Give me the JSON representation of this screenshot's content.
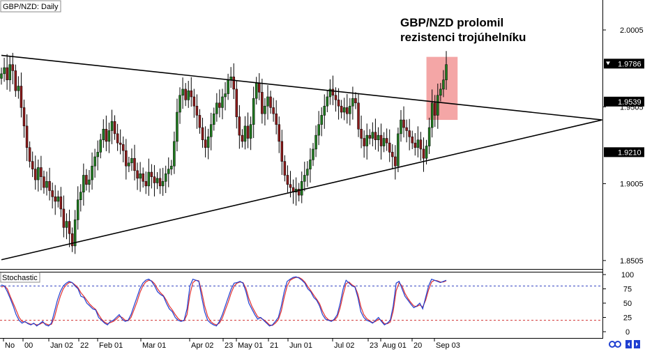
{
  "window": {
    "symbol_label": "GBP/NZD: Daily",
    "indicator_label": "Stochastic"
  },
  "annotation": {
    "line1": "GBP/NZD prolomil",
    "line2": "rezistenci trojúhelníku"
  },
  "colors": {
    "bull": "#1f7a1f",
    "bear": "#8b1a1a",
    "wick": "#000000",
    "trendline": "#000000",
    "highlight": "#f08080",
    "stoch_k": "#1f3fd1",
    "stoch_d": "#e03030",
    "level_upper": "#3040c0",
    "level_lower": "#d03030",
    "grid": "#cccccc",
    "price_tag_bg": "#000000",
    "price_tag_fg": "#ffffff"
  },
  "chart_data": [
    {
      "type": "candlestick",
      "title": "GBP/NZD: Daily",
      "ylim": [
        1.845,
        2.02
      ],
      "y_ticks": [
        "2.0005",
        "1.9505",
        "1.9005",
        "1.8505"
      ],
      "x_ticks": [
        "No",
        "00",
        "Jan 02",
        "22",
        "Feb 01",
        "Mar 01",
        "Apr 02",
        "23",
        "May 01",
        "21",
        "Jun 01",
        "Jul 02",
        "23",
        "Aug 01",
        "20",
        "Sep 03"
      ],
      "price_tags": [
        "1.9786",
        "1.9539",
        "1.9210"
      ],
      "current_price": 1.9786,
      "triangle": {
        "resistance": [
          [
            0,
            1.984
          ],
          [
            212,
            1.942
          ]
        ],
        "support": [
          [
            0,
            1.851
          ],
          [
            212,
            1.942
          ]
        ]
      },
      "breakout_zone": {
        "x_range": [
          150,
          161
        ],
        "y_range": [
          1.942,
          1.983
        ]
      },
      "closes": [
        1.972,
        1.976,
        1.968,
        1.978,
        1.974,
        1.961,
        1.964,
        1.95,
        1.938,
        1.924,
        1.915,
        1.91,
        1.903,
        1.911,
        1.905,
        1.898,
        1.902,
        1.896,
        1.892,
        1.889,
        1.892,
        1.884,
        1.872,
        1.876,
        1.868,
        1.86,
        1.877,
        1.89,
        1.895,
        1.906,
        1.9,
        1.903,
        1.912,
        1.918,
        1.921,
        1.929,
        1.936,
        1.928,
        1.935,
        1.941,
        1.933,
        1.927,
        1.926,
        1.922,
        1.912,
        1.914,
        1.917,
        1.909,
        1.904,
        1.907,
        1.902,
        1.899,
        1.908,
        1.905,
        1.901,
        1.904,
        1.899,
        1.902,
        1.907,
        1.91,
        1.912,
        1.928,
        1.947,
        1.958,
        1.962,
        1.955,
        1.961,
        1.957,
        1.951,
        1.945,
        1.937,
        1.929,
        1.924,
        1.931,
        1.939,
        1.946,
        1.953,
        1.95,
        1.957,
        1.959,
        1.968,
        1.97,
        1.962,
        1.944,
        1.932,
        1.928,
        1.938,
        1.93,
        1.939,
        1.956,
        1.966,
        1.96,
        1.946,
        1.951,
        1.957,
        1.95,
        1.946,
        1.939,
        1.928,
        1.915,
        1.906,
        1.9,
        1.898,
        1.895,
        1.897,
        1.893,
        1.902,
        1.906,
        1.91,
        1.916,
        1.923,
        1.932,
        1.939,
        1.945,
        1.951,
        1.957,
        1.962,
        1.958,
        1.955,
        1.951,
        1.947,
        1.95,
        1.946,
        1.951,
        1.956,
        1.953,
        1.936,
        1.93,
        1.925,
        1.932,
        1.93,
        1.934,
        1.929,
        1.932,
        1.925,
        1.93,
        1.927,
        1.921,
        1.918,
        1.912,
        1.933,
        1.942,
        1.937,
        1.935,
        1.931,
        1.927,
        1.924,
        1.929,
        1.923,
        1.917,
        1.925,
        1.937,
        1.953,
        1.945,
        1.958,
        1.962,
        1.968,
        1.978
      ],
      "stochastic": {
        "ylim": [
          0,
          100
        ],
        "y_ticks": [
          "100",
          "75",
          "50",
          "25",
          "0"
        ],
        "levels": [
          80,
          20
        ],
        "k": [
          82,
          80,
          70,
          58,
          45,
          30,
          20,
          15,
          18,
          14,
          12,
          15,
          10,
          14,
          18,
          12,
          10,
          15,
          35,
          55,
          70,
          80,
          85,
          88,
          86,
          80,
          75,
          62,
          60,
          50,
          45,
          40,
          38,
          25,
          20,
          15,
          12,
          18,
          20,
          25,
          30,
          22,
          18,
          20,
          30,
          45,
          60,
          75,
          85,
          90,
          92,
          88,
          80,
          70,
          65,
          62,
          50,
          40,
          35,
          25,
          20,
          18,
          20,
          40,
          80,
          92,
          90,
          88,
          60,
          35,
          20,
          15,
          12,
          10,
          18,
          30,
          45,
          60,
          75,
          85,
          86,
          88,
          85,
          70,
          50,
          40,
          30,
          22,
          25,
          20,
          15,
          10,
          12,
          18,
          25,
          45,
          70,
          88,
          92,
          95,
          96,
          94,
          90,
          85,
          75,
          70,
          60,
          55,
          45,
          30,
          22,
          20,
          18,
          22,
          30,
          50,
          75,
          90,
          85,
          80,
          78,
          60,
          35,
          25,
          20,
          18,
          15,
          20,
          25,
          18,
          12,
          15,
          20,
          45,
          85,
          88,
          75,
          62,
          55,
          48,
          42,
          45,
          50,
          40,
          60,
          80,
          92,
          90,
          88,
          86,
          88,
          90
        ],
        "d": [
          78,
          80,
          75,
          62,
          50,
          38,
          25,
          18,
          17,
          15,
          13,
          14,
          12,
          13,
          16,
          14,
          12,
          13,
          25,
          45,
          62,
          75,
          82,
          86,
          86,
          82,
          77,
          68,
          62,
          55,
          48,
          43,
          39,
          30,
          22,
          17,
          14,
          16,
          18,
          22,
          27,
          25,
          20,
          19,
          25,
          38,
          52,
          68,
          80,
          87,
          90,
          89,
          84,
          75,
          68,
          63,
          55,
          45,
          38,
          30,
          23,
          19,
          19,
          30,
          65,
          86,
          90,
          89,
          70,
          45,
          27,
          18,
          14,
          12,
          15,
          24,
          38,
          52,
          68,
          80,
          85,
          87,
          86,
          76,
          58,
          45,
          35,
          26,
          24,
          21,
          17,
          12,
          11,
          15,
          21,
          36,
          60,
          80,
          90,
          93,
          95,
          95,
          92,
          87,
          79,
          72,
          64,
          57,
          49,
          36,
          26,
          21,
          19,
          20,
          26,
          42,
          65,
          84,
          87,
          82,
          79,
          66,
          44,
          30,
          23,
          19,
          16,
          18,
          22,
          20,
          14,
          14,
          17,
          36,
          72,
          86,
          80,
          67,
          58,
          51,
          45,
          44,
          47,
          43,
          55,
          73,
          87,
          90,
          89,
          87,
          87,
          89
        ]
      }
    }
  ]
}
